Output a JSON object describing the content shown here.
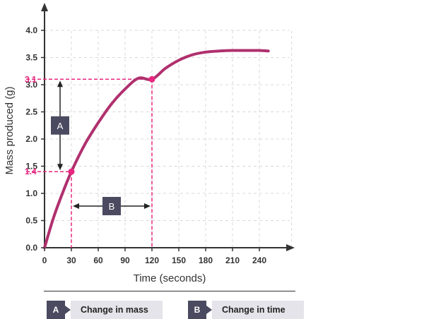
{
  "chart_data": {
    "type": "line",
    "xlabel": "Time (seconds)",
    "ylabel": "Mass produced (g)",
    "xlim": [
      0,
      280
    ],
    "ylim": [
      0,
      4.3
    ],
    "xticks": [
      0,
      30,
      60,
      90,
      120,
      150,
      180,
      210,
      240
    ],
    "yticks": [
      0.0,
      0.5,
      1.0,
      1.5,
      2.0,
      2.5,
      3.0,
      3.5,
      4.0
    ],
    "ytick_labels": [
      "0.0",
      "0.5",
      "1.0",
      "1.5",
      "2.0",
      "2.5",
      "3.0",
      "3.5",
      "4.0"
    ],
    "grid": true,
    "series": [
      {
        "x": [
          0,
          10,
          20,
          30,
          45,
          60,
          75,
          90,
          105,
          120,
          135,
          150,
          165,
          180,
          195,
          210,
          225,
          240,
          250
        ],
        "y": [
          0,
          0.55,
          1.0,
          1.4,
          1.9,
          2.3,
          2.65,
          2.92,
          3.12,
          3.1,
          3.3,
          3.45,
          3.55,
          3.6,
          3.62,
          3.63,
          3.63,
          3.63,
          3.62
        ]
      }
    ],
    "highlight_points": [
      {
        "x": 30,
        "y": 1.4,
        "label": "1.4"
      },
      {
        "x": 120,
        "y": 3.1,
        "label": "3.1"
      }
    ],
    "annotations": {
      "a_label": "A",
      "b_label": "B"
    },
    "colors": {
      "curve": "#b0306e",
      "highlight": "#e8267f",
      "axis": "#333333",
      "grid": "#d8d8d8",
      "label_box": "#4a4a60"
    }
  },
  "legend": {
    "items": [
      {
        "key": "A",
        "text": "Change in mass"
      },
      {
        "key": "B",
        "text": "Change in time"
      }
    ]
  }
}
